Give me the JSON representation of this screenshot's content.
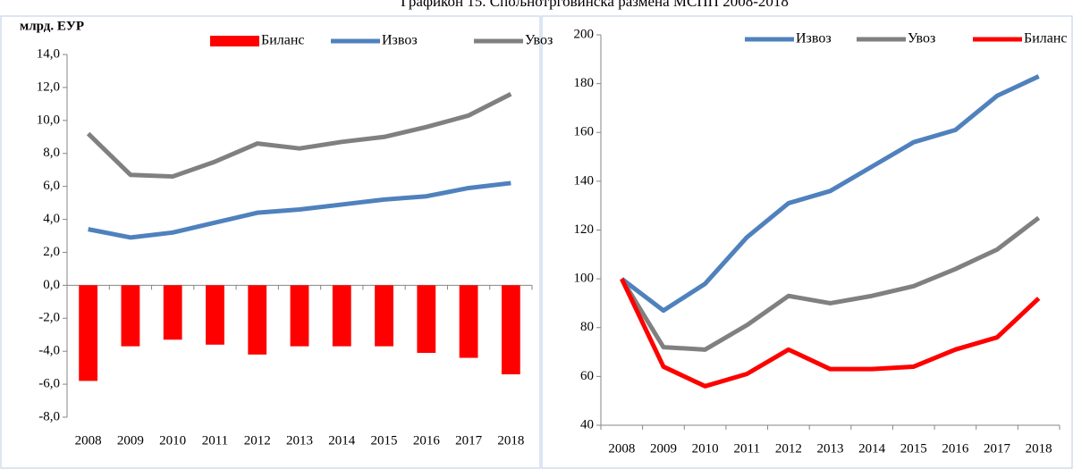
{
  "title": "Графикон 15. Спољнотрговинска размена МСПП 2008-2018",
  "chart_data": [
    {
      "type": "combo",
      "ylabel": "млрд. ЕУР",
      "categories": [
        "2008",
        "2009",
        "2010",
        "2011",
        "2012",
        "2013",
        "2014",
        "2015",
        "2016",
        "2017",
        "2018"
      ],
      "series": [
        {
          "name": "Биланс",
          "type": "bar",
          "color": "#ff0000",
          "values": [
            -5.8,
            -3.7,
            -3.3,
            -3.6,
            -4.2,
            -3.7,
            -3.7,
            -3.7,
            -4.1,
            -4.4,
            -5.4
          ]
        },
        {
          "name": "Извоз",
          "type": "line",
          "color": "#4f81bd",
          "values": [
            3.4,
            2.9,
            3.2,
            3.8,
            4.4,
            4.6,
            4.9,
            5.2,
            5.4,
            5.9,
            6.2
          ]
        },
        {
          "name": "Увоз",
          "type": "line",
          "color": "#808080",
          "values": [
            9.2,
            6.7,
            6.6,
            7.5,
            8.6,
            8.3,
            8.7,
            9.0,
            9.6,
            10.3,
            11.6
          ]
        }
      ],
      "ylim": [
        -8,
        14
      ],
      "yticks": [
        {
          "value": -8,
          "label": "-8,0"
        },
        {
          "value": -6,
          "label": "-6,0"
        },
        {
          "value": -4,
          "label": "-4,0"
        },
        {
          "value": -2,
          "label": "-2,0"
        },
        {
          "value": 0,
          "label": "0,0"
        },
        {
          "value": 2,
          "label": "2,0"
        },
        {
          "value": 4,
          "label": "4,0"
        },
        {
          "value": 6,
          "label": "6,0"
        },
        {
          "value": 8,
          "label": "8,0"
        },
        {
          "value": 10,
          "label": "10,0"
        },
        {
          "value": 12,
          "label": "12,0"
        },
        {
          "value": 14,
          "label": "14,0"
        }
      ],
      "grid": false,
      "legend": "top"
    },
    {
      "type": "line",
      "categories": [
        "2008",
        "2009",
        "2010",
        "2011",
        "2012",
        "2013",
        "2014",
        "2015",
        "2016",
        "2017",
        "2018"
      ],
      "series": [
        {
          "name": "Извоз",
          "color": "#4f81bd",
          "values": [
            100,
            87,
            98,
            117,
            131,
            136,
            146,
            156,
            161,
            175,
            183
          ]
        },
        {
          "name": "Увоз",
          "color": "#808080",
          "values": [
            100,
            72,
            71,
            81,
            93,
            90,
            93,
            97,
            104,
            112,
            125
          ]
        },
        {
          "name": "Биланс",
          "color": "#ff0000",
          "values": [
            100,
            64,
            56,
            61,
            71,
            63,
            63,
            64,
            71,
            76,
            92
          ]
        }
      ],
      "ylim": [
        40,
        200
      ],
      "yticks": [
        40,
        60,
        80,
        100,
        120,
        140,
        160,
        180,
        200
      ],
      "grid": false,
      "legend": "top"
    }
  ]
}
